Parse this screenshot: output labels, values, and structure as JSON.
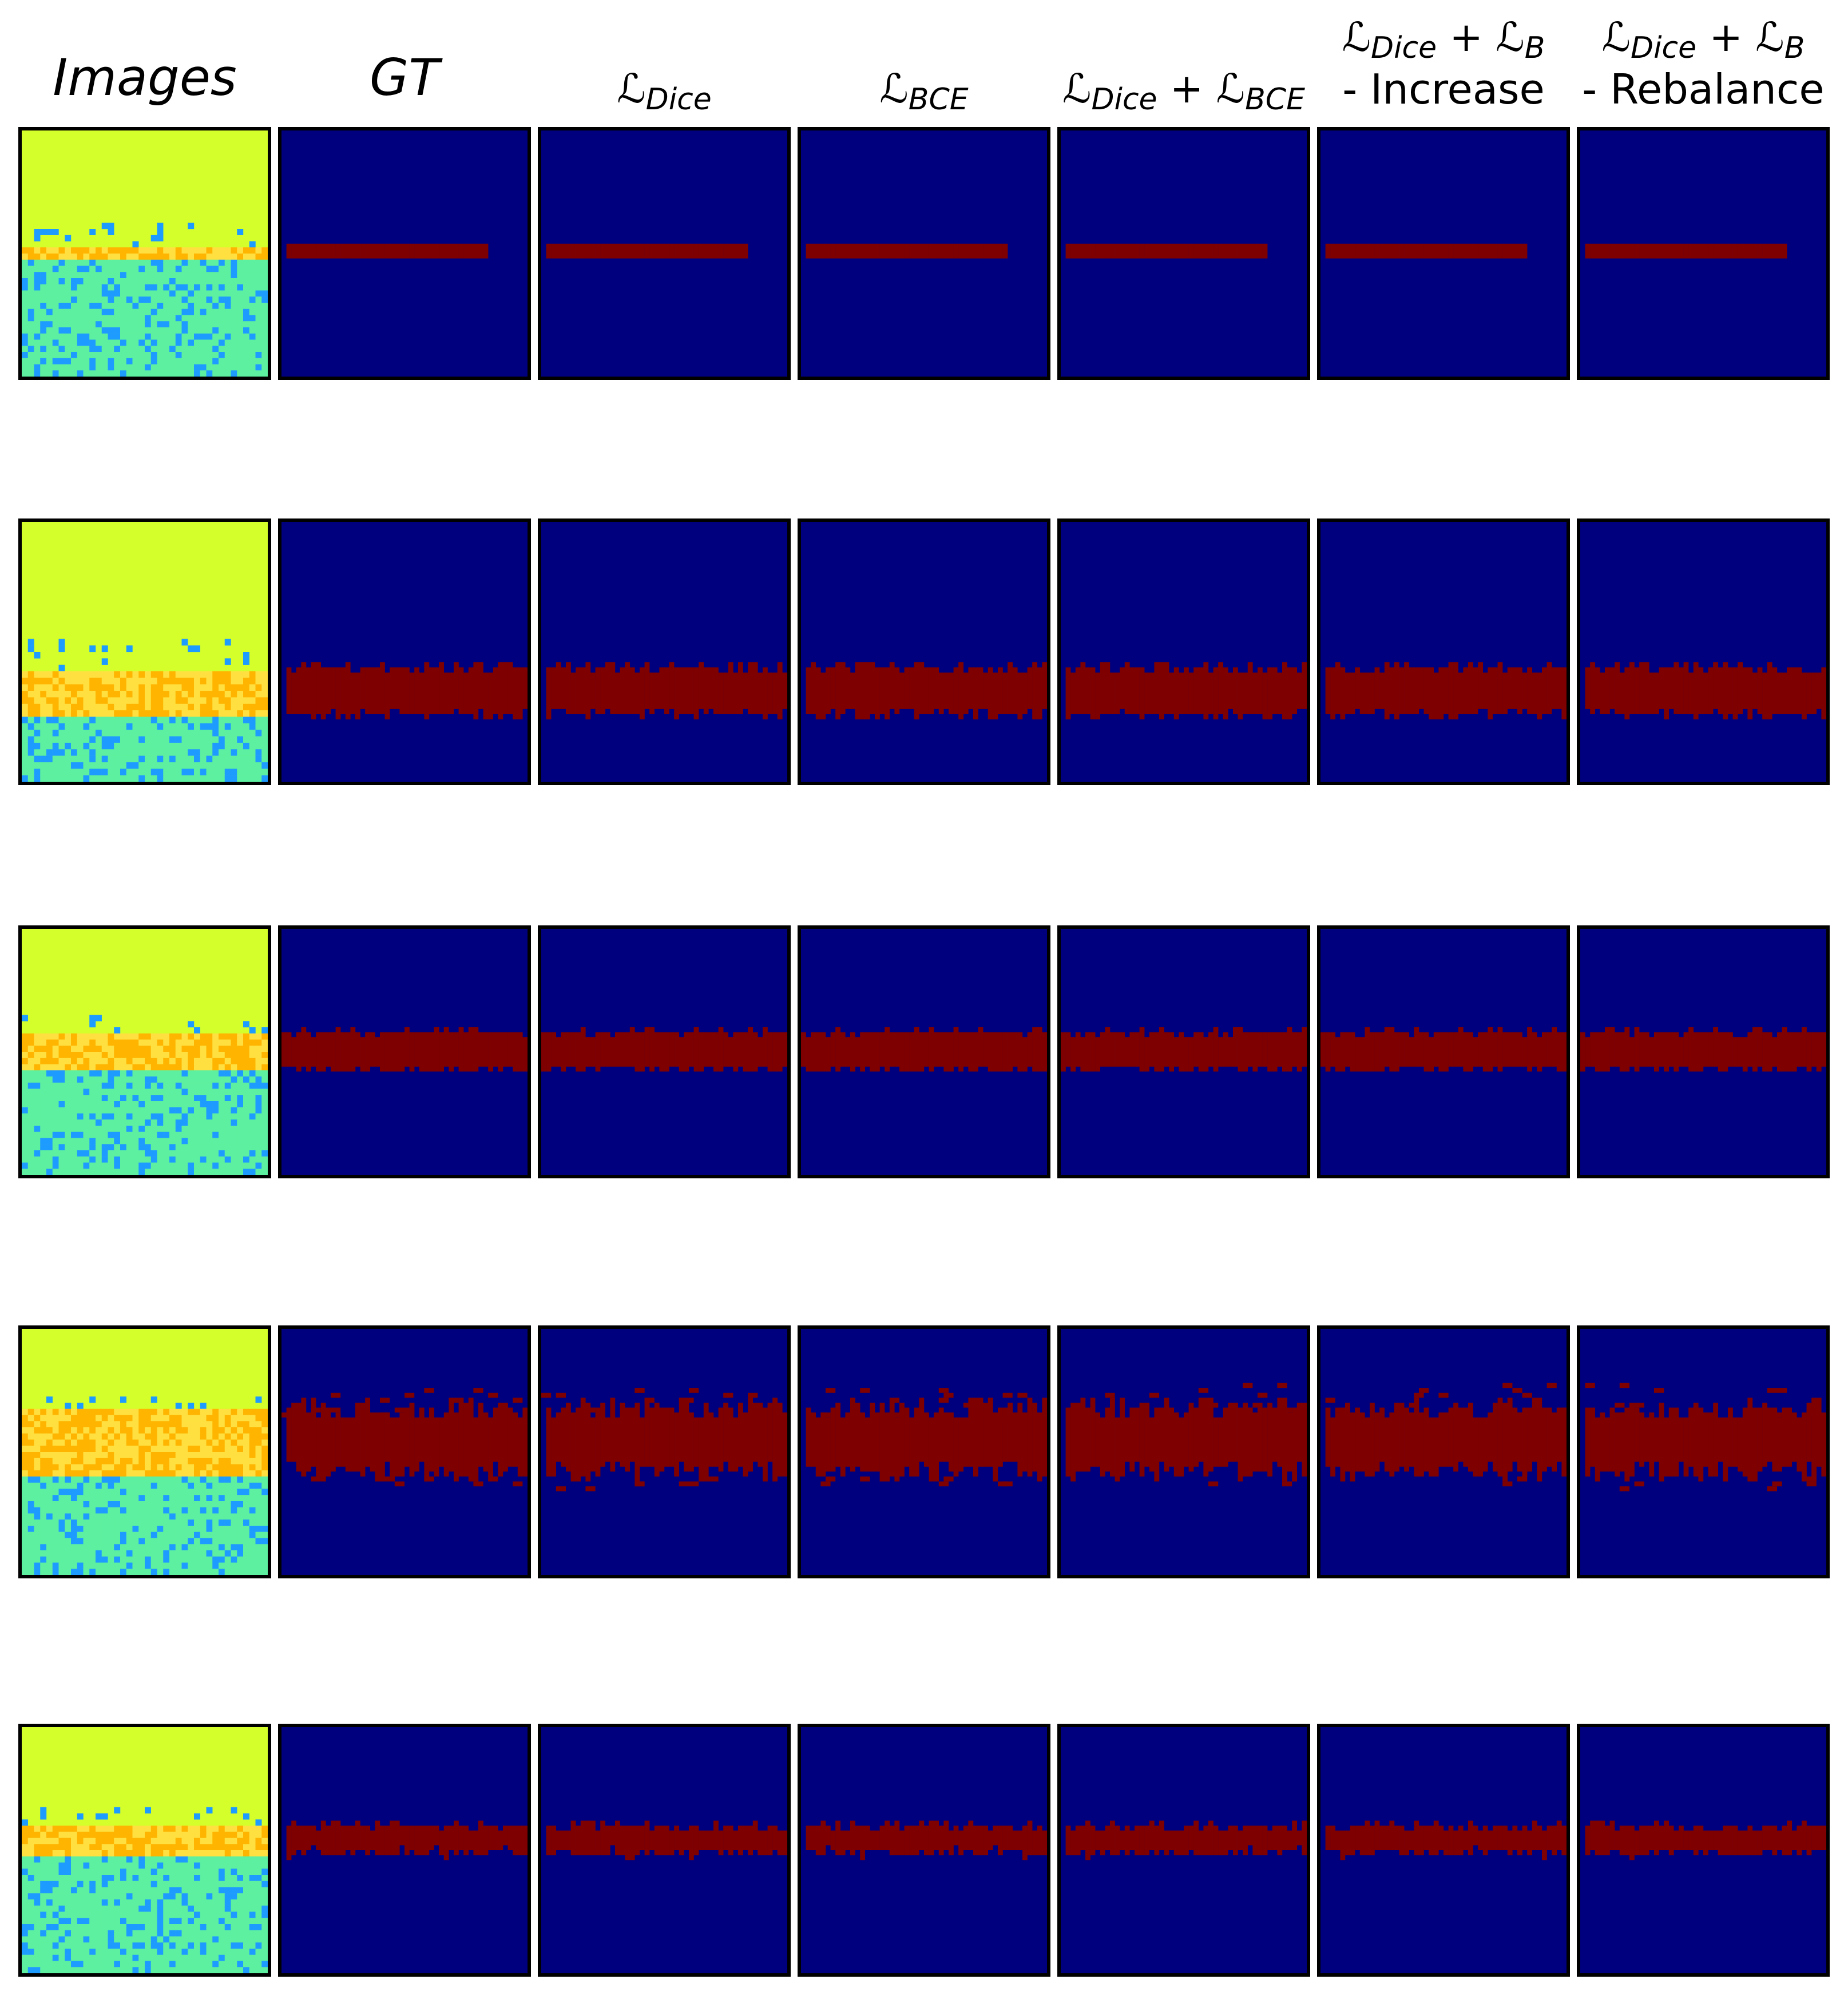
{
  "column_headers": [
    {
      "line1": "Images",
      "line2": ""
    },
    {
      "line1": "GT",
      "line2": ""
    },
    {
      "line1": "ℒ",
      "sub": "Dice",
      "line2": ""
    },
    {
      "line1": "ℒ",
      "sub": "BCE",
      "line2": ""
    },
    {
      "line1": "ℒ",
      "sub": "Dice",
      "plus": "+ ℒ",
      "sub2": "BCE",
      "line2": ""
    },
    {
      "line1": "ℒ",
      "sub": "Dice",
      "plus": "+ ℒ",
      "sub2": "B",
      "line2": "- Increase"
    },
    {
      "line1": "ℒ",
      "sub": "Dice",
      "plus": "+ ℒ",
      "sub2": "B",
      "line2": "- Rebalance"
    }
  ],
  "colors": {
    "background_mask": "#00007f",
    "foreground_mask": "#7f0000",
    "image_top": "#d4ff2a",
    "image_low": "#5cf0a0",
    "image_noise": "#1e9bff",
    "image_hot": "#ffb400"
  },
  "rows": [
    {
      "band_top": 0.46,
      "band_bottom": 0.52,
      "band_start": 0.03,
      "band_end": 0.83,
      "roughness": 0.15
    },
    {
      "band_top": 0.56,
      "band_bottom": 0.74,
      "band_start": 0.02,
      "band_end": 0.99,
      "roughness": 0.35
    },
    {
      "band_top": 0.42,
      "band_bottom": 0.57,
      "band_start": 0.0,
      "band_end": 1.0,
      "roughness": 0.25
    },
    {
      "band_top": 0.32,
      "band_bottom": 0.58,
      "band_start": 0.02,
      "band_end": 0.99,
      "roughness": 0.7
    },
    {
      "band_top": 0.4,
      "band_bottom": 0.51,
      "band_start": 0.02,
      "band_end": 0.99,
      "roughness": 0.35
    }
  ]
}
